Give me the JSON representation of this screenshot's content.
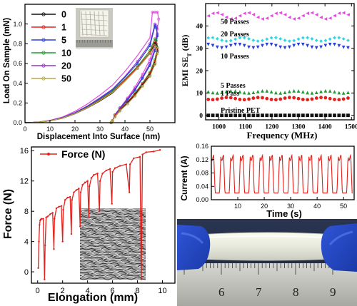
{
  "colors": {
    "red": "#e3201b",
    "black": "#111111",
    "blue": "#2a3fd6",
    "green": "#1f9a32",
    "violet": "#8d35cc",
    "magenta": "#e24ce0",
    "cyan": "#32d6e0",
    "olive": "#b5a94a"
  },
  "chart_data": [
    {
      "type": "line",
      "xlabel": "Displacement Into Surface (nm)",
      "ylabel": "Load On Sample (mN)",
      "xlim": [
        0,
        60
      ],
      "ylim": [
        0,
        1.2
      ],
      "xticks": [
        0,
        10,
        20,
        30,
        40,
        50
      ],
      "yticks": [
        "0.0",
        "0.2",
        "0.4",
        "0.6",
        "0.8",
        "1.0"
      ],
      "legend_placement": "center-left",
      "series": [
        {
          "name": "0",
          "color": "#111111",
          "peak": [
            52,
            0.8
          ],
          "x": [
            0,
            5,
            10,
            15,
            20,
            25,
            30,
            35,
            40,
            45,
            50,
            52,
            52.5,
            53,
            52,
            50,
            47,
            44,
            41,
            38,
            36,
            35,
            34.5
          ],
          "y": [
            0,
            0.004,
            0.018,
            0.045,
            0.09,
            0.15,
            0.22,
            0.3,
            0.42,
            0.55,
            0.7,
            0.8,
            0.78,
            0.72,
            0.6,
            0.48,
            0.38,
            0.28,
            0.2,
            0.12,
            0.06,
            0.02,
            0
          ]
        },
        {
          "name": "1",
          "color": "#e3201b",
          "x": [
            0,
            5,
            10,
            15,
            20,
            25,
            30,
            35,
            40,
            45,
            50,
            52,
            52.5,
            53,
            52,
            50,
            47,
            44,
            41,
            38,
            36,
            35,
            34.5
          ],
          "y": [
            0,
            0.004,
            0.019,
            0.047,
            0.093,
            0.155,
            0.23,
            0.31,
            0.43,
            0.56,
            0.71,
            0.82,
            0.8,
            0.74,
            0.62,
            0.5,
            0.39,
            0.29,
            0.21,
            0.13,
            0.07,
            0.02,
            0
          ]
        },
        {
          "name": "5",
          "color": "#2a3fd6",
          "x": [
            0,
            5,
            10,
            15,
            20,
            25,
            30,
            35,
            40,
            45,
            50,
            52,
            52.5,
            53,
            52,
            50,
            47,
            44,
            41,
            38,
            36,
            35,
            34.5
          ],
          "y": [
            0,
            0.005,
            0.02,
            0.05,
            0.1,
            0.165,
            0.245,
            0.33,
            0.46,
            0.6,
            0.78,
            0.98,
            0.96,
            0.88,
            0.73,
            0.58,
            0.45,
            0.33,
            0.23,
            0.14,
            0.07,
            0.02,
            0
          ]
        },
        {
          "name": "10",
          "color": "#1f9a32",
          "x": [
            0,
            5,
            10,
            15,
            20,
            25,
            30,
            35,
            40,
            45,
            50,
            52,
            52.5,
            53,
            52,
            50,
            47,
            44,
            41,
            38,
            36,
            35,
            34.5
          ],
          "y": [
            0,
            0.004,
            0.019,
            0.048,
            0.095,
            0.158,
            0.235,
            0.32,
            0.44,
            0.57,
            0.73,
            0.85,
            0.83,
            0.76,
            0.64,
            0.51,
            0.4,
            0.3,
            0.21,
            0.13,
            0.07,
            0.02,
            0
          ]
        },
        {
          "name": "20",
          "color": "#8d35cc",
          "x": [
            0,
            5,
            10,
            15,
            20,
            25,
            30,
            35,
            40,
            45,
            50,
            52,
            52.5,
            53,
            52,
            50,
            47,
            44,
            41,
            38,
            36,
            35,
            34.5
          ],
          "y": [
            0,
            0.005,
            0.021,
            0.052,
            0.103,
            0.17,
            0.252,
            0.34,
            0.47,
            0.62,
            0.8,
            1.0,
            0.98,
            0.9,
            0.75,
            0.6,
            0.46,
            0.34,
            0.24,
            0.15,
            0.08,
            0.02,
            0
          ]
        },
        {
          "name": "50",
          "color": "#b5a94a",
          "x": [
            0,
            5,
            10,
            15,
            20,
            25,
            30,
            35,
            40,
            45,
            50,
            52,
            52.5,
            53,
            52,
            50,
            47,
            44,
            41,
            38,
            36,
            35,
            34.5
          ],
          "y": [
            0,
            0.004,
            0.018,
            0.046,
            0.092,
            0.152,
            0.225,
            0.305,
            0.42,
            0.55,
            0.7,
            0.78,
            0.76,
            0.7,
            0.59,
            0.47,
            0.37,
            0.27,
            0.19,
            0.12,
            0.06,
            0.02,
            0
          ]
        },
        {
          "name": "",
          "color": "#e24ce0",
          "x": [
            0,
            5,
            10,
            15,
            20,
            25,
            30,
            35,
            40,
            45,
            50,
            51,
            52,
            53,
            53.5,
            53,
            52,
            50,
            47,
            44,
            41,
            38,
            36,
            35,
            34.5
          ],
          "y": [
            0,
            0.006,
            0.024,
            0.058,
            0.115,
            0.19,
            0.28,
            0.38,
            0.52,
            0.68,
            0.86,
            1.12,
            1.12,
            1.12,
            1.05,
            0.95,
            0.8,
            0.64,
            0.49,
            0.36,
            0.25,
            0.15,
            0.08,
            0.02,
            0
          ]
        }
      ]
    },
    {
      "type": "scatter",
      "xlabel": "Frequency (MHz)",
      "ylabel": "EMI SE",
      "ylabel_sub": "T",
      "ylabel_unit": " (dB)",
      "xlim": [
        950,
        1510
      ],
      "ylim": [
        -2,
        50
      ],
      "xticks": [
        1000,
        1100,
        1200,
        1300,
        1400,
        1500
      ],
      "yticks": [
        0,
        10,
        20,
        30,
        40
      ],
      "series": [
        {
          "name": "50 Passes",
          "color": "#e24ce0",
          "marker": "triangle-left",
          "mean": 44.5,
          "amp": 1.4
        },
        {
          "name": "20 Passes",
          "color": "#32d6e0",
          "marker": "diamond",
          "mean": 34.0,
          "amp": 0.8
        },
        {
          "name": "10 Passes",
          "color": "#2a3fd6",
          "marker": "triangle-down",
          "mean": 31.0,
          "amp": 0.8
        },
        {
          "name": "5 Passes",
          "color": "#1f9a32",
          "marker": "triangle-up",
          "mean": 10.5,
          "amp": 0.5
        },
        {
          "name": "1 Pass",
          "color": "#e3201b",
          "marker": "circle",
          "mean": 7.5,
          "amp": 0.5
        },
        {
          "name": "Pristine PET",
          "color": "#111111",
          "marker": "square",
          "mean": 0.0,
          "amp": 0.0
        }
      ]
    },
    {
      "type": "line",
      "xlabel": "Elongation (mm)",
      "ylabel": "Force (N)",
      "xlim": [
        -0.5,
        11
      ],
      "ylim": [
        -1.5,
        16.5
      ],
      "xticks": [
        0,
        2,
        4,
        6,
        8,
        10
      ],
      "yticks": [
        0,
        4,
        8,
        12,
        16
      ],
      "legend_placement": "top-left",
      "series": [
        {
          "name": "Force (N)",
          "color": "#e3201b",
          "x": [
            0.05,
            0.1,
            0.15,
            0.2,
            0.25,
            0.3,
            0.45,
            0.55,
            0.6,
            0.68,
            0.8,
            1.0,
            1.2,
            1.3,
            1.35,
            1.5,
            1.7,
            1.9,
            2.0,
            2.05,
            2.2,
            2.4,
            2.6,
            2.7,
            2.75,
            2.9,
            3.1,
            3.3,
            3.4,
            3.45,
            3.6,
            3.8,
            4.0,
            4.1,
            4.15,
            4.3,
            4.5,
            4.8,
            4.95,
            5.0,
            5.2,
            5.5,
            5.8,
            5.95,
            6.0,
            6.2,
            6.6,
            7.1,
            7.35,
            7.4,
            7.7,
            8.2,
            8.3,
            8.4,
            8.7,
            9.3,
            9.8
          ],
          "y": [
            0.5,
            4.0,
            6.2,
            6.8,
            6.9,
            7.0,
            7.0,
            -1.0,
            3.5,
            7.2,
            7.3,
            7.6,
            7.8,
            3.0,
            7.0,
            8.4,
            8.6,
            8.7,
            4.0,
            8.2,
            9.5,
            9.8,
            9.9,
            5.0,
            9.5,
            10.5,
            10.8,
            11.0,
            6.0,
            10.5,
            11.5,
            11.8,
            12.0,
            7.2,
            11.3,
            12.4,
            12.8,
            13.0,
            8.0,
            12.0,
            13.0,
            13.4,
            13.6,
            9.0,
            13.2,
            13.7,
            14.0,
            14.2,
            10.5,
            14.2,
            15.0,
            15.2,
            -1.0,
            15.5,
            15.8,
            15.9,
            16.1
          ]
        }
      ]
    },
    {
      "type": "line",
      "xlabel": "Time (s)",
      "ylabel": "Current (A)",
      "xlim": [
        0,
        54
      ],
      "ylim": [
        0,
        0.16
      ],
      "xticks": [
        10,
        20,
        30,
        40,
        50
      ],
      "yticks": [
        "0.00",
        "0.04",
        "0.08",
        "0.12",
        "0.16"
      ],
      "series": [
        {
          "name": "",
          "color": "#e3201b",
          "period": 3.7,
          "high": 0.125,
          "low": 0.02,
          "cycles": 14
        }
      ]
    }
  ],
  "photo": {
    "ruler_numbers": [
      "6",
      "7",
      "8",
      "9"
    ]
  }
}
